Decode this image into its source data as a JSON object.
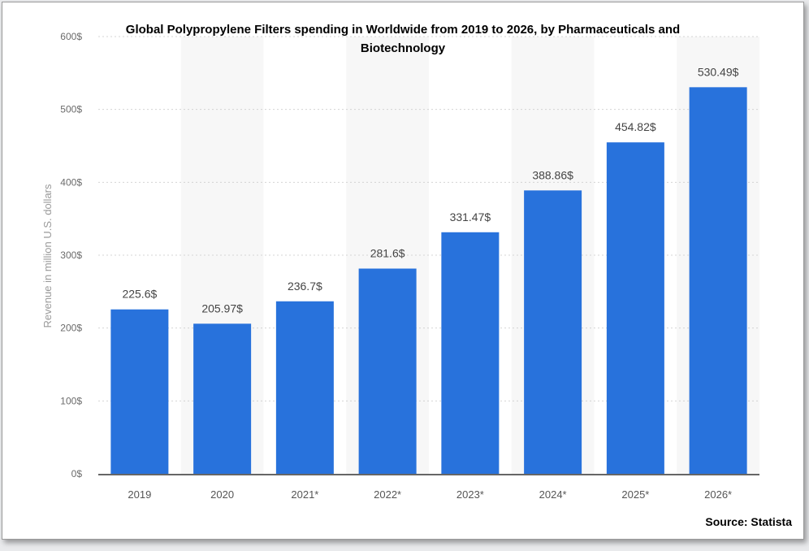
{
  "chart_data": {
    "type": "bar",
    "title_line1": "Global Polypropylene Filters spending in Worldwide from 2019 to 2026, by Pharmaceuticals and",
    "title_line2": "Biotechnology",
    "ylabel": "Revenue in million U.S. dollars",
    "xlabel": "",
    "categories": [
      "2019",
      "2020",
      "2021*",
      "2022*",
      "2023*",
      "2024*",
      "2025*",
      "2026*"
    ],
    "values": [
      225.6,
      205.97,
      236.7,
      281.6,
      331.47,
      388.86,
      454.82,
      530.49
    ],
    "value_labels": [
      "225.6$",
      "205.97$",
      "236.7$",
      "281.6$",
      "331.47$",
      "388.86$",
      "454.82$",
      "530.49$"
    ],
    "ylim": [
      0,
      600
    ],
    "yticks": [
      "0$",
      "100$",
      "200$",
      "300$",
      "400$",
      "500$",
      "600$"
    ],
    "grid": "horizontal dotted",
    "bar_color": "#2872dc",
    "source": "Source: Statista"
  }
}
